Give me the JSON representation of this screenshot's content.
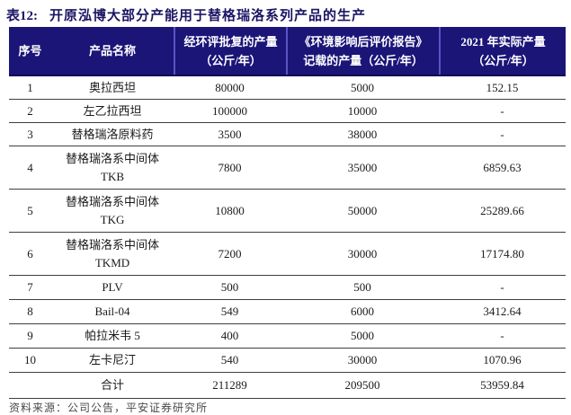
{
  "page": {
    "title_label": "表12:",
    "title_text": "开原泓博大部分产能用于替格瑞洛系列产品的生产",
    "source_note": "资料来源：公司公告，平安证券研究所"
  },
  "colors": {
    "header_bg": "#1b1578",
    "header_text": "#ffffff",
    "header_divider": "#5a55c2",
    "header_bottom": "#0f0c52",
    "title_text": "#1b1464",
    "row_line": "#3f3f3f",
    "body_text": "#1a1a1a",
    "note_text": "#4a4a4a"
  },
  "table": {
    "columns": [
      {
        "label": "序号",
        "label2": ""
      },
      {
        "label": "产品名称",
        "label2": ""
      },
      {
        "label": "经环评批复的产量",
        "label2": "（公斤/年）"
      },
      {
        "label": "《环境影响后评价报告》",
        "label2": "记载的产量（公斤/年）"
      },
      {
        "label": "2021 年实际产量",
        "label2": "（公斤/年）"
      }
    ],
    "rows": [
      {
        "no": "1",
        "name": "奥拉西坦",
        "name2": "",
        "approved": "80000",
        "report": "5000",
        "actual": "152.15"
      },
      {
        "no": "2",
        "name": "左乙拉西坦",
        "name2": "",
        "approved": "100000",
        "report": "10000",
        "actual": "-"
      },
      {
        "no": "3",
        "name": "替格瑞洛原料药",
        "name2": "",
        "approved": "3500",
        "report": "38000",
        "actual": "-"
      },
      {
        "no": "4",
        "name": "替格瑞洛系中间体",
        "name2": "TKB",
        "approved": "7800",
        "report": "35000",
        "actual": "6859.63"
      },
      {
        "no": "5",
        "name": "替格瑞洛系中间体",
        "name2": "TKG",
        "approved": "10800",
        "report": "50000",
        "actual": "25289.66"
      },
      {
        "no": "6",
        "name": "替格瑞洛系中间体",
        "name2": "TKMD",
        "approved": "7200",
        "report": "30000",
        "actual": "17174.80"
      },
      {
        "no": "7",
        "name": "PLV",
        "name2": "",
        "approved": "500",
        "report": "500",
        "actual": "-"
      },
      {
        "no": "8",
        "name": "Bail-04",
        "name2": "",
        "approved": "549",
        "report": "6000",
        "actual": "3412.64"
      },
      {
        "no": "9",
        "name": "帕拉米韦 5",
        "name2": "",
        "approved": "400",
        "report": "5000",
        "actual": "-"
      },
      {
        "no": "10",
        "name": "左卡尼汀",
        "name2": "",
        "approved": "540",
        "report": "30000",
        "actual": "1070.96"
      }
    ],
    "total_row": {
      "no": "",
      "name": "合计",
      "approved": "211289",
      "report": "209500",
      "actual": "53959.84"
    }
  }
}
